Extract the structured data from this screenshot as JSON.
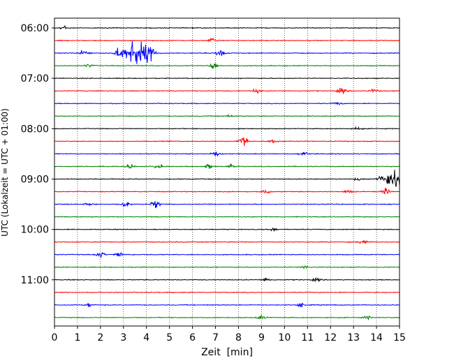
{
  "chart_data": {
    "type": "line",
    "title": "",
    "xlabel": "Zeit  [min]",
    "ylabel": "UTC (Lokalzeit = UTC + 01:00)",
    "xlim": [
      0,
      15
    ],
    "x_ticks": [
      "0",
      "1",
      "2",
      "3",
      "4",
      "5",
      "6",
      "7",
      "8",
      "9",
      "10",
      "11",
      "12",
      "13",
      "14",
      "15"
    ],
    "y_tick_labels": [
      "06:00",
      "07:00",
      "08:00",
      "09:00",
      "10:00",
      "11:00"
    ],
    "grid": "vertical dotted",
    "trace_colors": [
      "#000000",
      "#ff0000",
      "#0000ff",
      "#008000"
    ],
    "series": [
      {
        "start": "06:00",
        "color": "#000000",
        "events": [
          {
            "t": 0.4,
            "amp": 0.3
          }
        ]
      },
      {
        "start": "06:15",
        "color": "#ff0000",
        "events": [
          {
            "t": 6.9,
            "amp": 0.5
          }
        ]
      },
      {
        "start": "06:30",
        "color": "#0000ff",
        "events": [
          {
            "t": 1.3,
            "amp": 0.5
          },
          {
            "t": 2.8,
            "amp": 0.7
          },
          {
            "t": 3.6,
            "amp": 2.0
          },
          {
            "t": 4.2,
            "amp": 0.6
          },
          {
            "t": 7.2,
            "amp": 0.6
          }
        ]
      },
      {
        "start": "06:45",
        "color": "#008000",
        "events": [
          {
            "t": 1.5,
            "amp": 0.2
          },
          {
            "t": 6.9,
            "amp": 0.5
          }
        ]
      },
      {
        "start": "07:00",
        "color": "#000000",
        "events": []
      },
      {
        "start": "07:15",
        "color": "#ff0000",
        "events": [
          {
            "t": 8.8,
            "amp": 0.3
          },
          {
            "t": 12.5,
            "amp": 0.4
          },
          {
            "t": 13.9,
            "amp": 0.3
          }
        ]
      },
      {
        "start": "07:30",
        "color": "#0000ff",
        "events": [
          {
            "t": 12.3,
            "amp": 0.2
          }
        ]
      },
      {
        "start": "07:45",
        "color": "#008000",
        "events": [
          {
            "t": 7.5,
            "amp": 0.2
          }
        ]
      },
      {
        "start": "08:00",
        "color": "#000000",
        "events": [
          {
            "t": 13.2,
            "amp": 0.2
          }
        ]
      },
      {
        "start": "08:15",
        "color": "#ff0000",
        "events": [
          {
            "t": 8.2,
            "amp": 1.0
          },
          {
            "t": 9.5,
            "amp": 0.3
          }
        ]
      },
      {
        "start": "08:30",
        "color": "#0000ff",
        "events": [
          {
            "t": 7.0,
            "amp": 0.3
          },
          {
            "t": 10.8,
            "amp": 0.3
          }
        ]
      },
      {
        "start": "08:45",
        "color": "#008000",
        "events": [
          {
            "t": 3.3,
            "amp": 0.3
          },
          {
            "t": 4.5,
            "amp": 0.4
          },
          {
            "t": 6.7,
            "amp": 0.3
          },
          {
            "t": 7.7,
            "amp": 0.3
          }
        ]
      },
      {
        "start": "09:00",
        "color": "#000000",
        "events": [
          {
            "t": 14.7,
            "amp": 1.2
          },
          {
            "t": 13.2,
            "amp": 0.2
          }
        ]
      },
      {
        "start": "09:15",
        "color": "#ff0000",
        "events": [
          {
            "t": 9.2,
            "amp": 0.3
          },
          {
            "t": 12.8,
            "amp": 0.3
          },
          {
            "t": 14.4,
            "amp": 0.4
          }
        ]
      },
      {
        "start": "09:30",
        "color": "#0000ff",
        "events": [
          {
            "t": 1.5,
            "amp": 0.2
          },
          {
            "t": 3.1,
            "amp": 0.6
          },
          {
            "t": 4.4,
            "amp": 0.6
          }
        ]
      },
      {
        "start": "09:45",
        "color": "#008000",
        "events": []
      },
      {
        "start": "10:00",
        "color": "#000000",
        "events": [
          {
            "t": 9.5,
            "amp": 0.2
          }
        ]
      },
      {
        "start": "10:15",
        "color": "#ff0000",
        "events": [
          {
            "t": 13.4,
            "amp": 0.3
          }
        ]
      },
      {
        "start": "10:30",
        "color": "#0000ff",
        "events": [
          {
            "t": 2.0,
            "amp": 0.4
          },
          {
            "t": 2.8,
            "amp": 0.3
          }
        ]
      },
      {
        "start": "10:45",
        "color": "#008000",
        "events": [
          {
            "t": 10.9,
            "amp": 0.2
          }
        ]
      },
      {
        "start": "11:00",
        "color": "#000000",
        "events": [
          {
            "t": 9.2,
            "amp": 0.3
          },
          {
            "t": 11.4,
            "amp": 0.2
          }
        ]
      },
      {
        "start": "11:15",
        "color": "#ff0000",
        "events": []
      },
      {
        "start": "11:30",
        "color": "#0000ff",
        "events": [
          {
            "t": 1.5,
            "amp": 0.3
          },
          {
            "t": 10.7,
            "amp": 0.3
          }
        ]
      },
      {
        "start": "11:45",
        "color": "#008000",
        "events": [
          {
            "t": 9.0,
            "amp": 0.3
          },
          {
            "t": 13.6,
            "amp": 0.2
          }
        ]
      }
    ]
  }
}
